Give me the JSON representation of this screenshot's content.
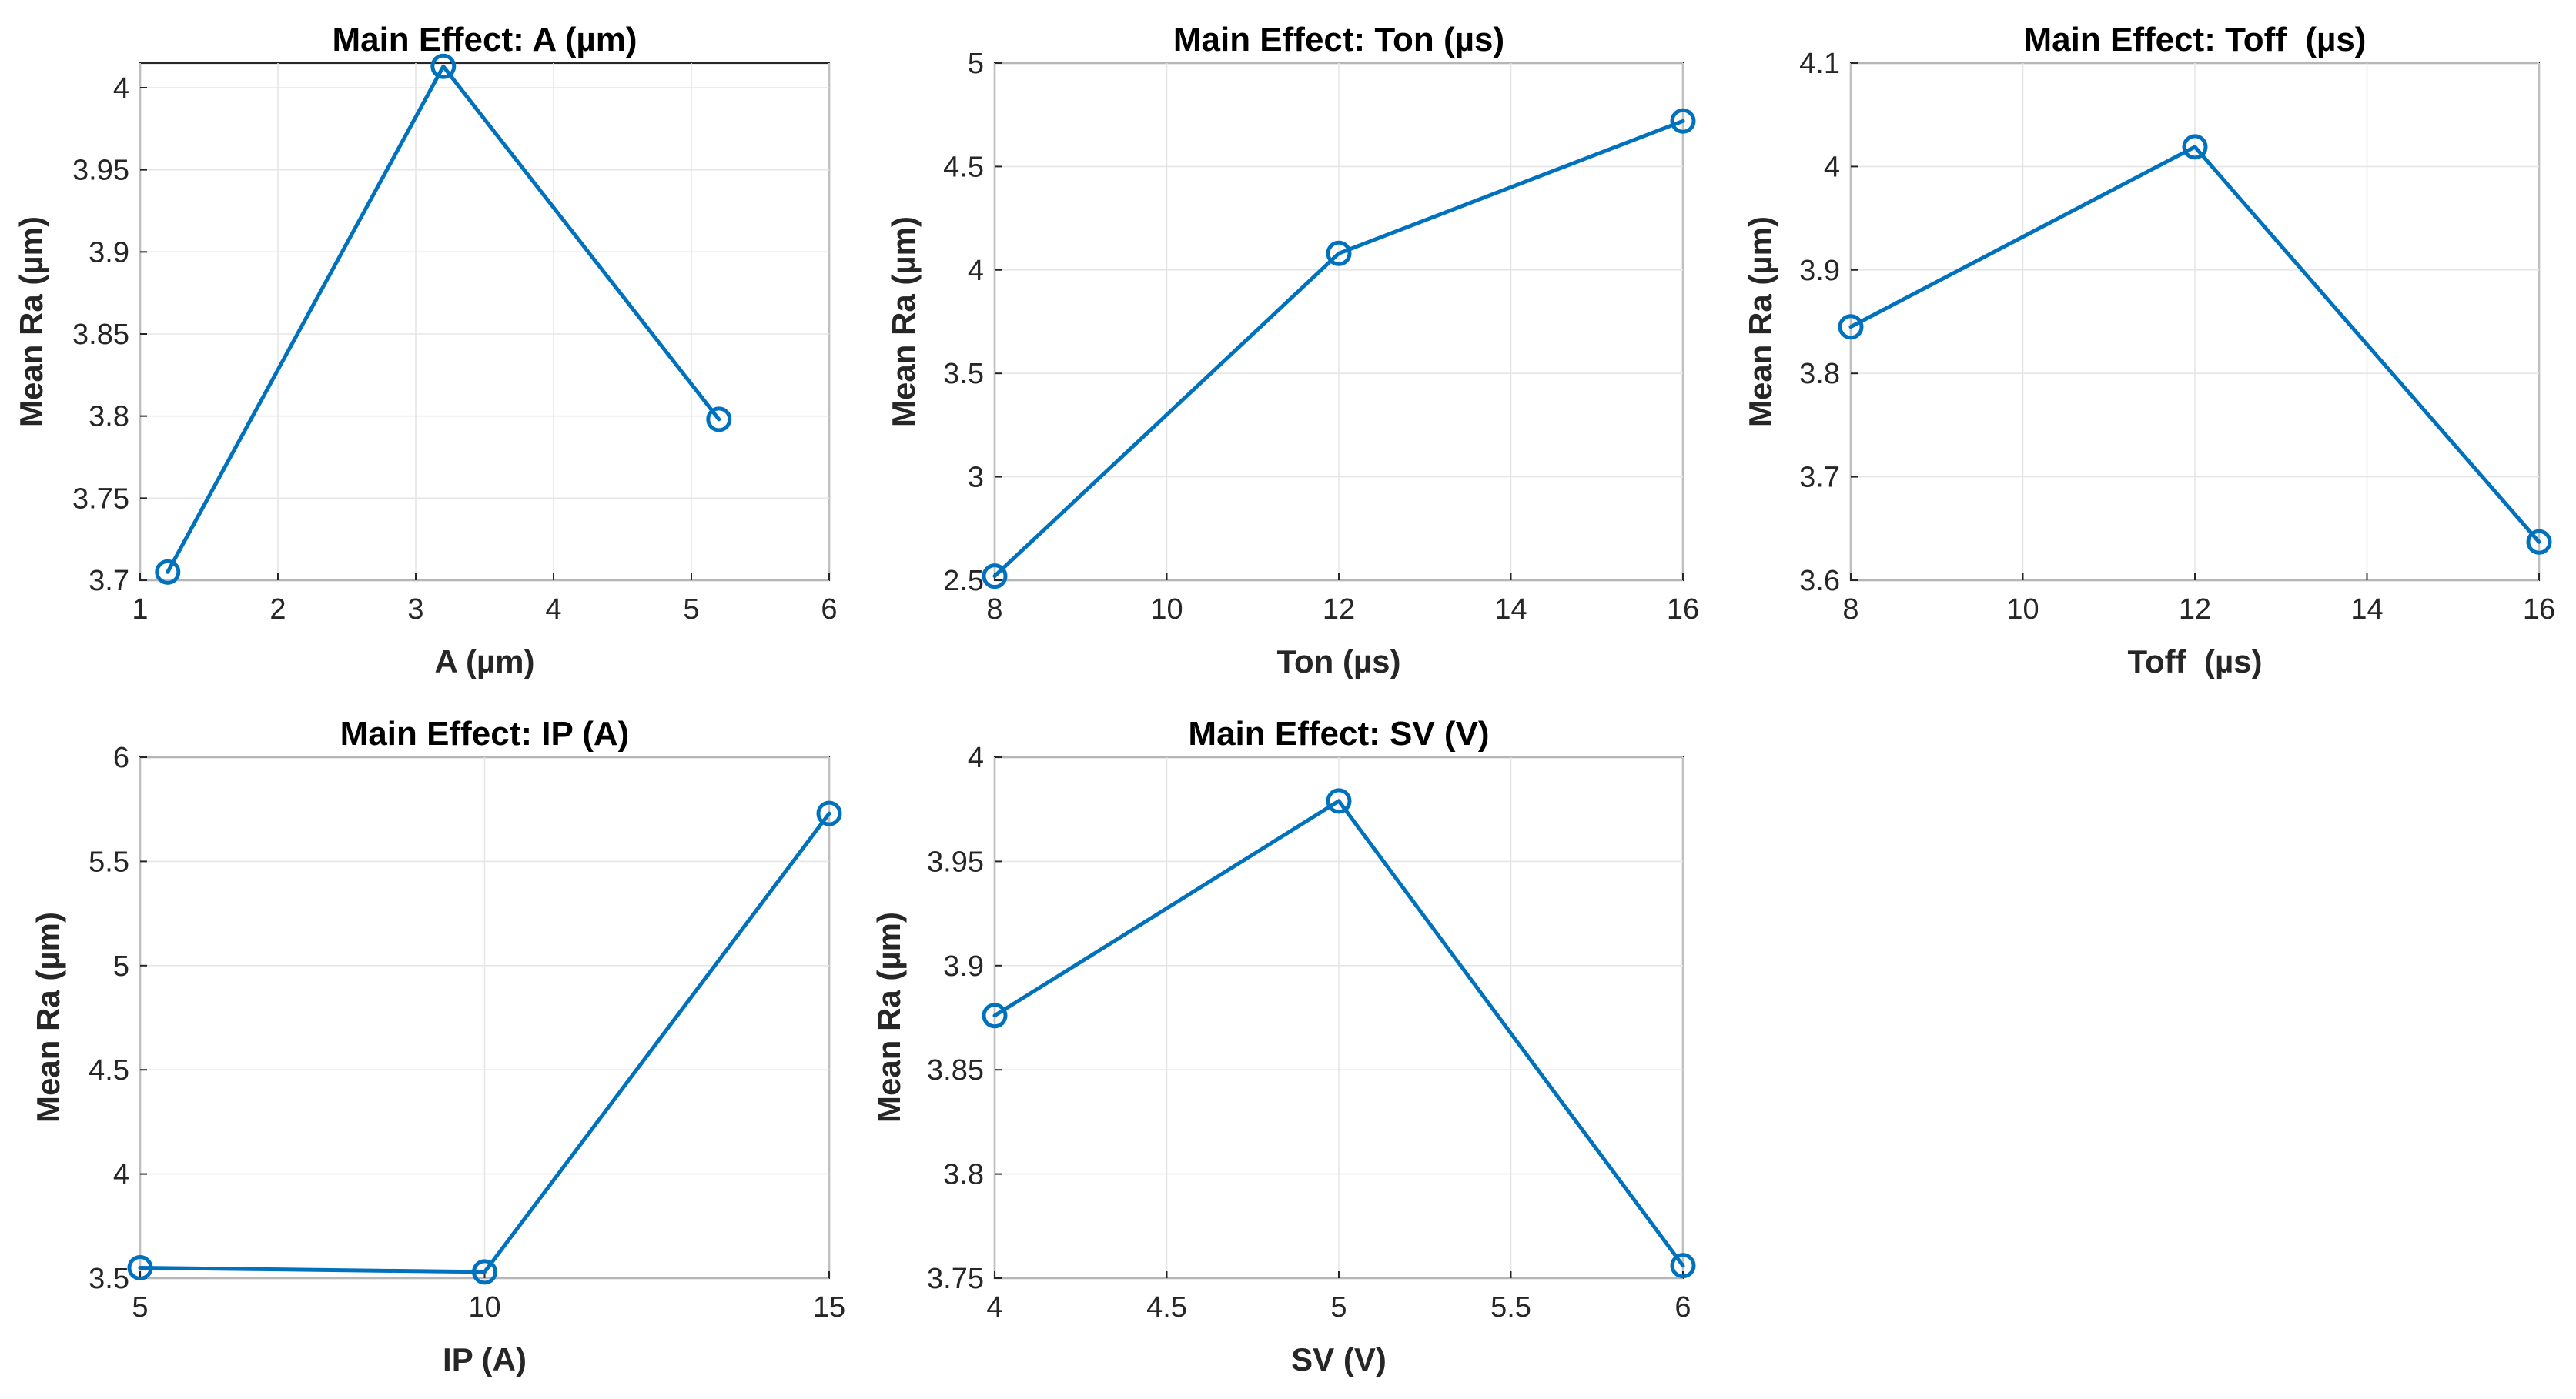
{
  "colors": {
    "series": "#0072BD",
    "axes": "#262626",
    "grid": "#e6e6e6"
  },
  "chart_data": [
    {
      "type": "line",
      "title": "Main Effect: A (µm)",
      "xlabel": "A (µm)",
      "ylabel": "Mean Ra (µm)",
      "x": [
        1.2,
        3.2,
        5.2
      ],
      "y": [
        3.705,
        4.013,
        3.798
      ],
      "xlim": [
        1,
        6
      ],
      "ylim": [
        3.7,
        4.015
      ],
      "xticks": [
        1,
        2,
        3,
        4,
        5,
        6
      ],
      "xtick_labels": [
        "1",
        "2",
        "3",
        "4",
        "5",
        "6"
      ],
      "yticks": [
        3.7,
        3.75,
        3.8,
        3.85,
        3.9,
        3.95,
        4.0
      ],
      "ytick_labels": [
        "3.7",
        "3.75",
        "3.8",
        "3.85",
        "3.9",
        "3.95",
        "4"
      ],
      "grid": true
    },
    {
      "type": "line",
      "title": "Main Effect: Ton (µs)",
      "xlabel": "Ton (µs)",
      "ylabel": "Mean Ra (µm)",
      "x": [
        8,
        12,
        16
      ],
      "y": [
        2.52,
        4.08,
        4.72
      ],
      "xlim": [
        8,
        16
      ],
      "ylim": [
        2.5,
        5
      ],
      "xticks": [
        8,
        10,
        12,
        14,
        16
      ],
      "xtick_labels": [
        "8",
        "10",
        "12",
        "14",
        "16"
      ],
      "yticks": [
        2.5,
        3,
        3.5,
        4,
        4.5,
        5
      ],
      "ytick_labels": [
        "2.5",
        "3",
        "3.5",
        "4",
        "4.5",
        "5"
      ],
      "grid": true
    },
    {
      "type": "line",
      "title": "Main Effect: Toff  (µs)",
      "xlabel": "Toff  (µs)",
      "ylabel": "Mean Ra (µm)",
      "x": [
        8,
        12,
        16
      ],
      "y": [
        3.845,
        4.019,
        3.637
      ],
      "xlim": [
        8,
        16
      ],
      "ylim": [
        3.6,
        4.1
      ],
      "xticks": [
        8,
        10,
        12,
        14,
        16
      ],
      "xtick_labels": [
        "8",
        "10",
        "12",
        "14",
        "16"
      ],
      "yticks": [
        3.6,
        3.7,
        3.8,
        3.9,
        4.0,
        4.1
      ],
      "ytick_labels": [
        "3.6",
        "3.7",
        "3.8",
        "3.9",
        "4",
        "4.1"
      ],
      "grid": true
    },
    {
      "type": "line",
      "title": "Main Effect: IP (A)",
      "xlabel": "IP (A)",
      "ylabel": "Mean Ra (µm)",
      "x": [
        5,
        10,
        15
      ],
      "y": [
        3.55,
        3.53,
        5.73
      ],
      "xlim": [
        5,
        15
      ],
      "ylim": [
        3.5,
        6
      ],
      "xticks": [
        5,
        10,
        15
      ],
      "xtick_labels": [
        "5",
        "10",
        "15"
      ],
      "yticks": [
        3.5,
        4,
        4.5,
        5,
        5.5,
        6
      ],
      "ytick_labels": [
        "3.5",
        "4",
        "4.5",
        "5",
        "5.5",
        "6"
      ],
      "grid": true
    },
    {
      "type": "line",
      "title": "Main Effect: SV (V)",
      "xlabel": "SV (V)",
      "ylabel": "Mean Ra (µm)",
      "x": [
        4,
        5,
        6
      ],
      "y": [
        3.876,
        3.979,
        3.756
      ],
      "xlim": [
        4,
        6
      ],
      "ylim": [
        3.75,
        4.0
      ],
      "xticks": [
        4,
        4.5,
        5,
        5.5,
        6
      ],
      "xtick_labels": [
        "4",
        "4.5",
        "5",
        "5.5",
        "6"
      ],
      "yticks": [
        3.75,
        3.8,
        3.85,
        3.9,
        3.95,
        4.0
      ],
      "ytick_labels": [
        "3.75",
        "3.8",
        "3.85",
        "3.9",
        "3.95",
        "4"
      ],
      "grid": true
    }
  ]
}
